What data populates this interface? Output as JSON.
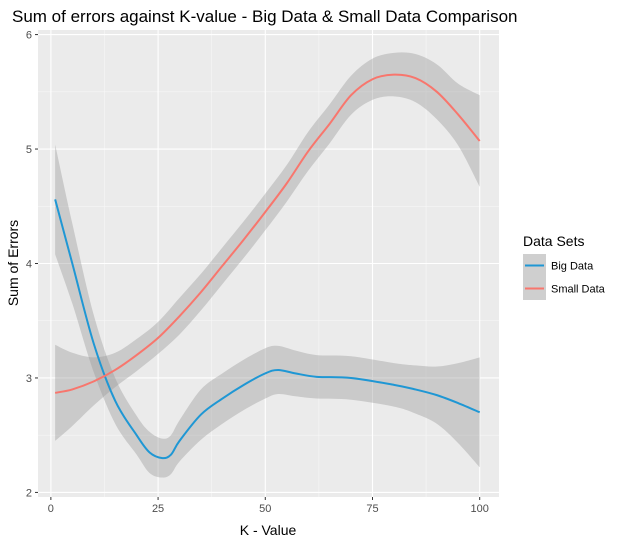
{
  "chart_data": {
    "type": "line",
    "title": "Sum of errors against K-value - Big Data & Small Data Comparison",
    "xlabel": "K - Value",
    "ylabel": "Sum of Errors",
    "xlim": [
      -3,
      104.5
    ],
    "ylim": [
      1.96,
      6.04
    ],
    "xticks": [
      0,
      25,
      50,
      75,
      100
    ],
    "yticks": [
      2,
      3,
      4,
      5,
      6
    ],
    "xtick_labels": [
      "0",
      "25",
      "50",
      "75",
      "100"
    ],
    "ytick_labels": [
      "2",
      "3",
      "4",
      "5",
      "6"
    ],
    "grid": true,
    "legend": {
      "title": "Data Sets",
      "placement": "right"
    },
    "series": [
      {
        "name": "Big Data",
        "color": "#1f97d4",
        "x": [
          1,
          5,
          10,
          15,
          20,
          23,
          26,
          28,
          30,
          35,
          40,
          45,
          50,
          53,
          57,
          62,
          70,
          80,
          85,
          90,
          95,
          100
        ],
        "y": [
          4.56,
          4.0,
          3.3,
          2.8,
          2.5,
          2.35,
          2.3,
          2.33,
          2.45,
          2.68,
          2.82,
          2.94,
          3.04,
          3.07,
          3.04,
          3.01,
          3.0,
          2.94,
          2.9,
          2.85,
          2.78,
          2.7
        ],
        "lower": [
          4.08,
          3.65,
          3.05,
          2.6,
          2.33,
          2.17,
          2.13,
          2.16,
          2.27,
          2.46,
          2.6,
          2.72,
          2.82,
          2.86,
          2.84,
          2.82,
          2.81,
          2.75,
          2.69,
          2.6,
          2.43,
          2.22
        ],
        "upper": [
          5.04,
          4.35,
          3.55,
          3.0,
          2.67,
          2.53,
          2.47,
          2.5,
          2.63,
          2.9,
          3.04,
          3.16,
          3.26,
          3.28,
          3.24,
          3.2,
          3.19,
          3.13,
          3.11,
          3.1,
          3.13,
          3.18
        ]
      },
      {
        "name": "Small Data",
        "color": "#f8766d",
        "x": [
          1,
          5,
          10,
          15,
          20,
          25,
          30,
          35,
          40,
          45,
          50,
          55,
          60,
          65,
          70,
          75,
          80,
          85,
          90,
          95,
          100
        ],
        "y": [
          2.87,
          2.9,
          2.97,
          3.07,
          3.2,
          3.35,
          3.54,
          3.75,
          3.98,
          4.21,
          4.45,
          4.7,
          4.98,
          5.22,
          5.47,
          5.61,
          5.65,
          5.62,
          5.5,
          5.3,
          5.07
        ],
        "lower": [
          2.45,
          2.58,
          2.76,
          2.92,
          3.06,
          3.21,
          3.38,
          3.59,
          3.82,
          4.05,
          4.29,
          4.54,
          4.81,
          5.05,
          5.3,
          5.43,
          5.46,
          5.41,
          5.26,
          5.03,
          4.67
        ],
        "upper": [
          3.29,
          3.22,
          3.18,
          3.22,
          3.34,
          3.49,
          3.7,
          3.91,
          4.14,
          4.37,
          4.61,
          4.86,
          5.15,
          5.39,
          5.64,
          5.79,
          5.84,
          5.83,
          5.74,
          5.57,
          5.47
        ]
      }
    ]
  }
}
